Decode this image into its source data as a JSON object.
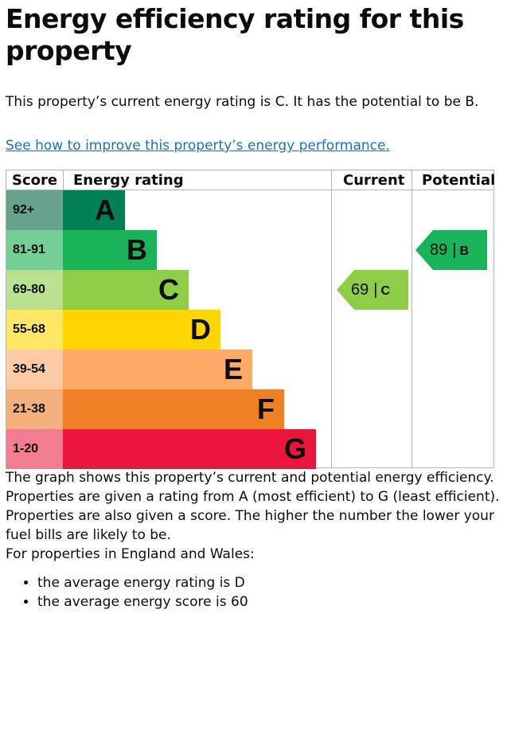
{
  "heading": "Energy efficiency rating for this property",
  "intro": "This property’s current energy rating is C. It has the potential to be B.",
  "improve_link": "See how to improve this property’s energy performance.",
  "table": {
    "headers": {
      "score": "Score",
      "rating": "Energy rating",
      "current": "Current",
      "potential": "Potential"
    },
    "bands": [
      {
        "score": "92+",
        "letter": "A",
        "bar_color": "#008054",
        "score_color": "#68a28a"
      },
      {
        "score": "81-91",
        "letter": "B",
        "bar_color": "#19b459",
        "score_color": "#74cf96"
      },
      {
        "score": "69-80",
        "letter": "C",
        "bar_color": "#8dce46",
        "score_color": "#b9e08f"
      },
      {
        "score": "55-68",
        "letter": "D",
        "bar_color": "#ffd500",
        "score_color": "#ffe766"
      },
      {
        "score": "39-54",
        "letter": "E",
        "bar_color": "#fcaa65",
        "score_color": "#fdcba3"
      },
      {
        "score": "21-38",
        "letter": "F",
        "bar_color": "#ef8023",
        "score_color": "#f4b07a"
      },
      {
        "score": "1-20",
        "letter": "G",
        "bar_color": "#e9153b",
        "score_color": "#f27d91"
      }
    ],
    "current": {
      "value": "69",
      "separator": "|",
      "letter": "C",
      "band_index": 2,
      "color": "#8dce46"
    },
    "potential": {
      "value": "89",
      "separator": "|",
      "letter": "B",
      "band_index": 1,
      "color": "#19b459"
    }
  },
  "paragraphs": [
    "The graph shows this property’s current and potential energy efficiency.",
    "Properties are given a rating from A (most efficient) to G (least efficient).",
    "Properties are also given a score. The higher the number the lower your fuel bills are likely to be.",
    "For properties in England and Wales:"
  ],
  "bullets": [
    "the average energy rating is D",
    "the average energy score is 60"
  ]
}
